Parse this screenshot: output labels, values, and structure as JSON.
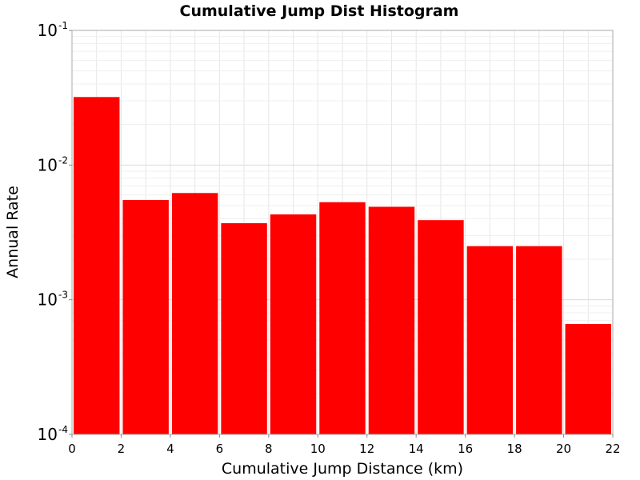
{
  "chart_data": {
    "type": "bar",
    "title": "Cumulative Jump Dist Histogram",
    "xlabel": "Cumulative Jump Distance (km)",
    "ylabel": "Annual Rate",
    "xlim": [
      0,
      22
    ],
    "ylim": [
      0.0001,
      0.1
    ],
    "yscale": "log",
    "grid": true,
    "bar_color": "#ff0000",
    "bin_width": 2,
    "x": [
      1,
      3,
      5,
      7,
      9,
      11,
      13,
      15,
      17,
      19,
      21
    ],
    "values": [
      0.032,
      0.0055,
      0.0062,
      0.0037,
      0.0043,
      0.0053,
      0.0049,
      0.0039,
      0.0025,
      0.0025,
      0.00066
    ],
    "xticks": [
      0,
      2,
      4,
      6,
      8,
      10,
      12,
      14,
      16,
      18,
      20,
      22
    ],
    "yticks": [
      {
        "base": "10",
        "exp": "-4",
        "value": 0.0001
      },
      {
        "base": "10",
        "exp": "-3",
        "value": 0.001
      },
      {
        "base": "10",
        "exp": "-2",
        "value": 0.01
      },
      {
        "base": "10",
        "exp": "-1",
        "value": 0.1
      }
    ]
  }
}
